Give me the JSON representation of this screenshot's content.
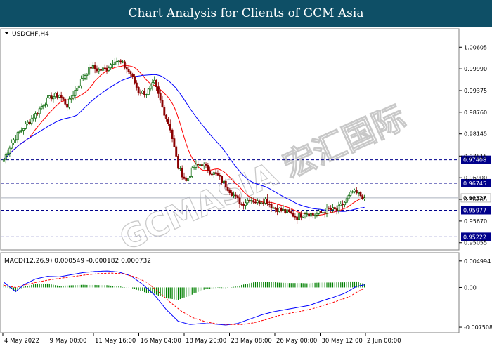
{
  "banner": {
    "title": "Chart Analysis for Clients of GCM Asia"
  },
  "symbol_label": "USDCHF,H4",
  "watermark": "GCMASIA 宏汇国际",
  "chart_data": [
    {
      "type": "candlestick",
      "symbol": "USDCHF",
      "timeframe": "H4",
      "ylim": [
        0.9505,
        1.0075
      ],
      "y_tick_labels": [
        "1.00605",
        "0.99990",
        "0.99375",
        "0.98760",
        "0.98145",
        "0.97515",
        "0.96900",
        "0.96285",
        "0.95670",
        "0.95055"
      ],
      "current_price": 0.96327,
      "horizontal_levels": [
        0.97408,
        0.96745,
        0.95977,
        0.95222
      ],
      "x_tick_labels": [
        "4 May 2022",
        "9 May 00:00",
        "11 May 16:00",
        "16 May 04:00",
        "18 May 20:00",
        "23 May 08:00",
        "26 May 00:00",
        "30 May 12:00",
        "2 Jun 00:00"
      ],
      "price_path": [
        [
          0,
          0.9742
        ],
        [
          4,
          0.979
        ],
        [
          8,
          0.982
        ],
        [
          12,
          0.9845
        ],
        [
          16,
          0.987
        ],
        [
          20,
          0.99
        ],
        [
          24,
          0.992
        ],
        [
          28,
          0.9925
        ],
        [
          32,
          0.9895
        ],
        [
          36,
          0.9938
        ],
        [
          40,
          0.9975
        ],
        [
          44,
          1.0005
        ],
        [
          48,
          0.9995
        ],
        [
          52,
          1.0
        ],
        [
          56,
          1.0025
        ],
        [
          60,
          1.0012
        ],
        [
          64,
          0.9985
        ],
        [
          68,
          0.9935
        ],
        [
          72,
          0.993
        ],
        [
          76,
          0.996
        ],
        [
          80,
          0.989
        ],
        [
          84,
          0.983
        ],
        [
          88,
          0.972
        ],
        [
          92,
          0.968
        ],
        [
          96,
          0.972
        ],
        [
          100,
          0.973
        ],
        [
          104,
          0.9708
        ],
        [
          108,
          0.9695
        ],
        [
          112,
          0.9668
        ],
        [
          116,
          0.964
        ],
        [
          120,
          0.9615
        ],
        [
          124,
          0.963
        ],
        [
          128,
          0.962
        ],
        [
          132,
          0.9628
        ],
        [
          136,
          0.9605
        ],
        [
          140,
          0.9598
        ],
        [
          144,
          0.959
        ],
        [
          148,
          0.9578
        ],
        [
          152,
          0.9592
        ],
        [
          156,
          0.9585
        ],
        [
          160,
          0.959
        ],
        [
          164,
          0.96
        ],
        [
          168,
          0.9598
        ],
        [
          172,
          0.962
        ],
        [
          176,
          0.965
        ],
        [
          180,
          0.964
        ],
        [
          182,
          0.9633
        ]
      ],
      "indicators": [
        {
          "type": "moving-average",
          "color": "#ff0000"
        },
        {
          "type": "moving-average",
          "color": "#0000ff"
        }
      ],
      "colors": {
        "bull": "#006400",
        "bear": "#8b0000",
        "level": "#00008b",
        "price_line": "#aab0be"
      }
    },
    {
      "type": "line",
      "title": "MACD(12,26,9) 0.000549 -0.000182 0.000732",
      "ylim": [
        -0.0079,
        0.0055
      ],
      "y_tick_labels": [
        "0.004994",
        "0.00",
        "-0.007508"
      ],
      "series": [
        {
          "style": "histogram",
          "color": "#008000"
        },
        {
          "style": "solid",
          "color": "#0000ff"
        },
        {
          "style": "dashed",
          "color": "#ff0000"
        }
      ],
      "macd_path": [
        [
          0,
          0.001
        ],
        [
          6,
          -0.0008
        ],
        [
          10,
          0.0005
        ],
        [
          16,
          0.0016
        ],
        [
          22,
          0.0021
        ],
        [
          28,
          0.002
        ],
        [
          34,
          0.0024
        ],
        [
          40,
          0.0028
        ],
        [
          46,
          0.003
        ],
        [
          52,
          0.0031
        ],
        [
          58,
          0.0029
        ],
        [
          64,
          0.0022
        ],
        [
          70,
          0.0006
        ],
        [
          76,
          -0.0014
        ],
        [
          82,
          -0.0042
        ],
        [
          88,
          -0.0064
        ],
        [
          94,
          -0.007
        ],
        [
          100,
          -0.0068
        ],
        [
          106,
          -0.0069
        ],
        [
          112,
          -0.0071
        ],
        [
          118,
          -0.0068
        ],
        [
          124,
          -0.006
        ],
        [
          130,
          -0.0052
        ],
        [
          136,
          -0.0046
        ],
        [
          142,
          -0.0042
        ],
        [
          148,
          -0.0038
        ],
        [
          154,
          -0.0034
        ],
        [
          160,
          -0.0026
        ],
        [
          166,
          -0.0019
        ],
        [
          172,
          -0.0011
        ],
        [
          178,
          0.0002
        ],
        [
          182,
          0.0005
        ]
      ],
      "signal_path": [
        [
          0,
          0.0004
        ],
        [
          6,
          0.0
        ],
        [
          12,
          0.0006
        ],
        [
          18,
          0.0011
        ],
        [
          24,
          0.0015
        ],
        [
          30,
          0.0018
        ],
        [
          36,
          0.0021
        ],
        [
          42,
          0.0024
        ],
        [
          48,
          0.0026
        ],
        [
          54,
          0.0027
        ],
        [
          60,
          0.0026
        ],
        [
          66,
          0.002
        ],
        [
          72,
          0.001
        ],
        [
          78,
          -0.0008
        ],
        [
          84,
          -0.0028
        ],
        [
          90,
          -0.0046
        ],
        [
          96,
          -0.0058
        ],
        [
          102,
          -0.0065
        ],
        [
          108,
          -0.0069
        ],
        [
          114,
          -0.007
        ],
        [
          120,
          -0.007
        ],
        [
          126,
          -0.0067
        ],
        [
          132,
          -0.0061
        ],
        [
          138,
          -0.0054
        ],
        [
          144,
          -0.0049
        ],
        [
          150,
          -0.0045
        ],
        [
          156,
          -0.004
        ],
        [
          162,
          -0.0033
        ],
        [
          168,
          -0.0026
        ],
        [
          174,
          -0.0018
        ],
        [
          180,
          -0.0005
        ],
        [
          182,
          -0.0002
        ]
      ]
    }
  ]
}
